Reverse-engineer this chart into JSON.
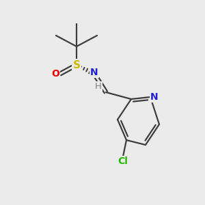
{
  "background_color": "#ebebeb",
  "atom_colors": {
    "C": "#3d3d3d",
    "N": "#2020cc",
    "S": "#ccbb00",
    "O": "#ee0000",
    "Cl": "#22bb00",
    "H": "#808080"
  },
  "bond_color": "#3d3d3d",
  "figsize": [
    3.0,
    3.0
  ],
  "dpi": 100
}
